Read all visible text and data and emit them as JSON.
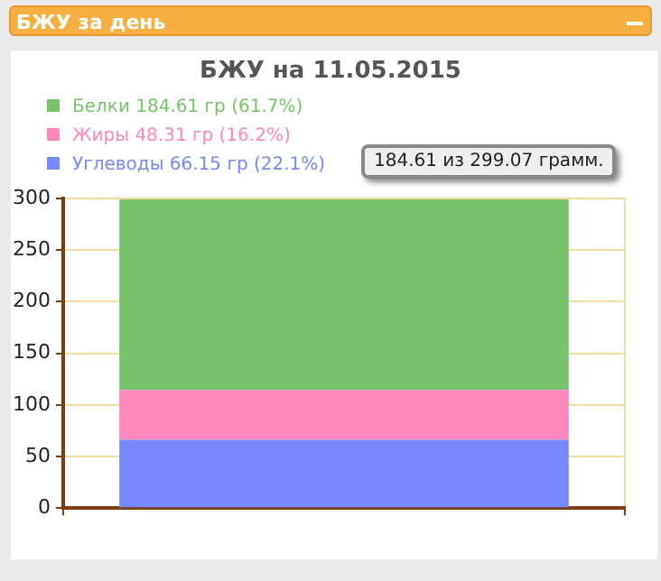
{
  "chart_data": {
    "type": "bar",
    "title": "БЖУ за день",
    "subtitle": "БЖУ на 11.05.2015",
    "categories": [
      null
    ],
    "stacked": true,
    "series": [
      {
        "name": "Углеводы 66.15 гр (22.1%)",
        "color": "#7788ff",
        "values": [
          66.15
        ]
      },
      {
        "name": "Жиры 48.31 гр (16.2%)",
        "color": "#ff88bb",
        "values": [
          48.31
        ]
      },
      {
        "name": "Белки 184.61 гр (61.7%)",
        "color": "#77c46a",
        "values": [
          184.61
        ]
      }
    ],
    "ylim": [
      0,
      300
    ],
    "yticks": [
      0,
      50,
      100,
      150,
      200,
      250,
      300
    ],
    "grid": true,
    "legend": "top left",
    "annotations": [
      "184.61 из 299.07 грамм."
    ]
  }
}
